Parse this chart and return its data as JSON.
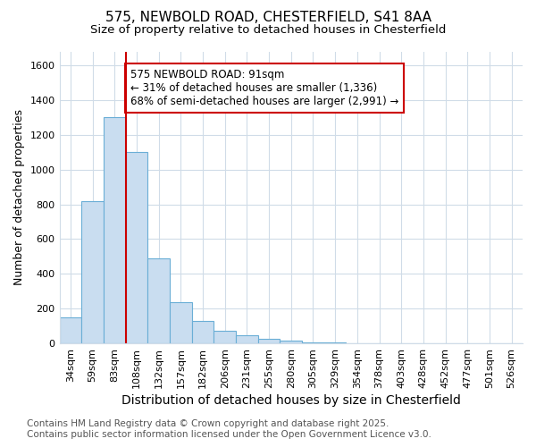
{
  "title_line1": "575, NEWBOLD ROAD, CHESTERFIELD, S41 8AA",
  "title_line2": "Size of property relative to detached houses in Chesterfield",
  "xlabel": "Distribution of detached houses by size in Chesterfield",
  "ylabel": "Number of detached properties",
  "bin_labels": [
    "34sqm",
    "59sqm",
    "83sqm",
    "108sqm",
    "132sqm",
    "157sqm",
    "182sqm",
    "206sqm",
    "231sqm",
    "255sqm",
    "280sqm",
    "305sqm",
    "329sqm",
    "354sqm",
    "378sqm",
    "403sqm",
    "428sqm",
    "452sqm",
    "477sqm",
    "501sqm",
    "526sqm"
  ],
  "bar_heights": [
    150,
    820,
    1300,
    1100,
    490,
    235,
    130,
    70,
    45,
    25,
    15,
    5,
    5,
    2,
    1,
    1,
    0,
    0,
    0,
    0,
    0
  ],
  "bar_color": "#c9ddf0",
  "bar_edge_color": "#6aaed6",
  "red_line_index": 2.5,
  "red_line_color": "#cc0000",
  "annotation_text": "575 NEWBOLD ROAD: 91sqm\n← 31% of detached houses are smaller (1,336)\n68% of semi-detached houses are larger (2,991) →",
  "annotation_box_facecolor": "#ffffff",
  "annotation_box_edgecolor": "#cc0000",
  "ylim": [
    0,
    1680
  ],
  "yticks": [
    0,
    200,
    400,
    600,
    800,
    1000,
    1200,
    1400,
    1600
  ],
  "bg_color": "#ffffff",
  "plot_bg_color": "#ffffff",
  "grid_color": "#d0dce8",
  "footer_line1": "Contains HM Land Registry data © Crown copyright and database right 2025.",
  "footer_line2": "Contains public sector information licensed under the Open Government Licence v3.0.",
  "title_fontsize": 11,
  "subtitle_fontsize": 9.5,
  "xlabel_fontsize": 10,
  "ylabel_fontsize": 9,
  "tick_fontsize": 8,
  "annotation_fontsize": 8.5,
  "footer_fontsize": 7.5
}
